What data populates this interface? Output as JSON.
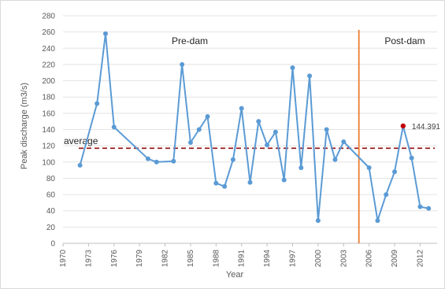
{
  "chart_data": {
    "type": "line",
    "title": "",
    "xlabel": "Year",
    "ylabel": "Peak discharge (m3/s)",
    "xlim": [
      1970,
      2014
    ],
    "ylim": [
      0,
      280
    ],
    "x_ticks": [
      1970,
      1973,
      1976,
      1979,
      1982,
      1985,
      1988,
      1991,
      1994,
      1997,
      2000,
      2003,
      2006,
      2009,
      2012
    ],
    "y_ticks": [
      0,
      20,
      40,
      60,
      80,
      100,
      120,
      140,
      160,
      180,
      200,
      220,
      240,
      260,
      280
    ],
    "grid": "horizontal",
    "series": [
      {
        "color": "#5b9bd5",
        "points": [
          {
            "x": 1972,
            "y": 96
          },
          {
            "x": 1974,
            "y": 172
          },
          {
            "x": 1975,
            "y": 258
          },
          {
            "x": 1976,
            "y": 143
          },
          {
            "x": 1980,
            "y": 104
          },
          {
            "x": 1981,
            "y": 100
          },
          {
            "x": 1983,
            "y": 101
          },
          {
            "x": 1984,
            "y": 220
          },
          {
            "x": 1985,
            "y": 124
          },
          {
            "x": 1986,
            "y": 140
          },
          {
            "x": 1987,
            "y": 156
          },
          {
            "x": 1988,
            "y": 74
          },
          {
            "x": 1989,
            "y": 70
          },
          {
            "x": 1990,
            "y": 103
          },
          {
            "x": 1991,
            "y": 166
          },
          {
            "x": 1992,
            "y": 75
          },
          {
            "x": 1993,
            "y": 150
          },
          {
            "x": 1994,
            "y": 121
          },
          {
            "x": 1995,
            "y": 137
          },
          {
            "x": 1996,
            "y": 78
          },
          {
            "x": 1997,
            "y": 216
          },
          {
            "x": 1998,
            "y": 93
          },
          {
            "x": 1999,
            "y": 206
          },
          {
            "x": 2000,
            "y": 28
          },
          {
            "x": 2001,
            "y": 140
          },
          {
            "x": 2002,
            "y": 103
          },
          {
            "x": 2003,
            "y": 125
          },
          {
            "x": 2006,
            "y": 93
          },
          {
            "x": 2007,
            "y": 28
          },
          {
            "x": 2008,
            "y": 60
          },
          {
            "x": 2009,
            "y": 88
          },
          {
            "x": 2010,
            "y": 144.391
          },
          {
            "x": 2011,
            "y": 105
          },
          {
            "x": 2012,
            "y": 45
          },
          {
            "x": 2013,
            "y": 43
          }
        ]
      }
    ],
    "average": {
      "label": "average",
      "value": 117,
      "color": "#9b1c1c"
    },
    "dam_line": {
      "x": 2004.8,
      "color": "#ed7d31"
    },
    "region_labels": {
      "pre": "Pre-dam",
      "post": "Post-dam"
    },
    "highlight": {
      "x": 2010,
      "y": 144.391,
      "label": "144.391",
      "color": "#c00000"
    }
  }
}
